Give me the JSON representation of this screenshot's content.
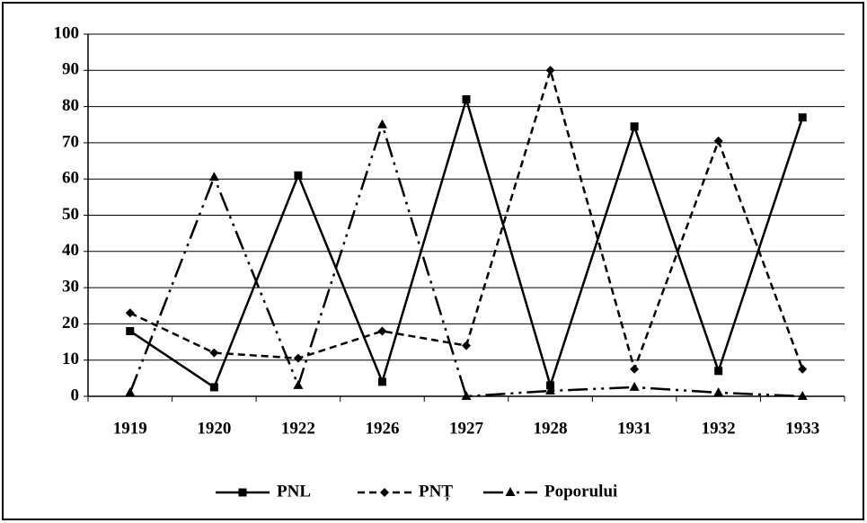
{
  "chart_data": {
    "type": "line",
    "categories": [
      "1919",
      "1920",
      "1922",
      "1926",
      "1927",
      "1928",
      "1931",
      "1932",
      "1933"
    ],
    "series": [
      {
        "name": "PNL",
        "color": "#000000",
        "dash": "solid",
        "marker": "square",
        "values": [
          18,
          2.5,
          61,
          4,
          82,
          3,
          74.5,
          7,
          77
        ]
      },
      {
        "name": "PNȚ",
        "color": "#000000",
        "dash": "dashed",
        "marker": "diamond",
        "values": [
          23,
          12,
          10.5,
          18,
          14,
          90,
          7.5,
          70.5,
          7.5
        ]
      },
      {
        "name": "Poporului",
        "color": "#000000",
        "dash": "dashdotdot",
        "marker": "triangle",
        "values": [
          1,
          60.5,
          3,
          75,
          0,
          1.5,
          2.5,
          1,
          0
        ]
      }
    ],
    "ylim": [
      0,
      100
    ],
    "yticks": [
      0,
      10,
      20,
      30,
      40,
      50,
      60,
      70,
      80,
      90,
      100
    ],
    "grid": true,
    "legend": "bottom"
  }
}
